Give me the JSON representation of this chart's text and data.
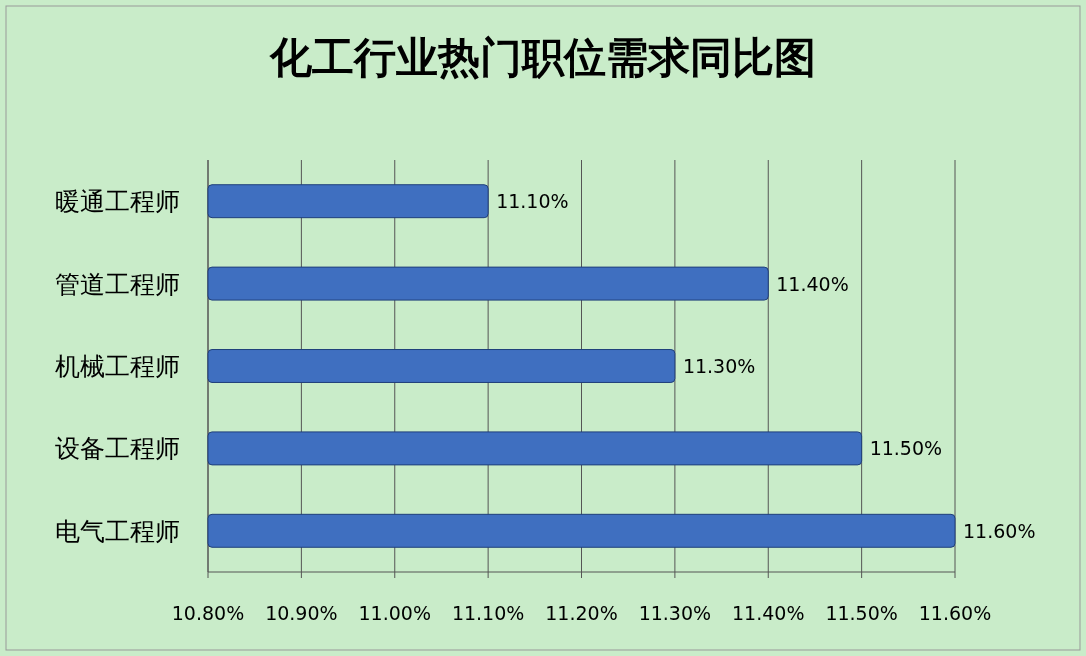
{
  "chart_data": {
    "type": "bar",
    "orientation": "horizontal",
    "title": "化工行业热门职位需求同比图",
    "categories": [
      "暖通工程师",
      "管道工程师",
      "机械工程师",
      "设备工程师",
      "电气工程师"
    ],
    "values": [
      11.1,
      11.4,
      11.3,
      11.5,
      11.6
    ],
    "value_labels": [
      "11.10%",
      "11.40%",
      "11.30%",
      "11.50%",
      "11.60%"
    ],
    "color": "#3f6fc0",
    "xlim": [
      10.8,
      11.6
    ],
    "xticks": [
      {
        "value": 10.8,
        "label": "10.80%"
      },
      {
        "value": 10.9,
        "label": "10.90%"
      },
      {
        "value": 11.0,
        "label": "11.00%"
      },
      {
        "value": 11.1,
        "label": "11.10%"
      },
      {
        "value": 11.2,
        "label": "11.20%"
      },
      {
        "value": 11.3,
        "label": "11.30%"
      },
      {
        "value": 11.4,
        "label": "11.40%"
      },
      {
        "value": 11.5,
        "label": "11.50%"
      },
      {
        "value": 11.6,
        "label": "11.60%"
      }
    ],
    "grid": "x"
  }
}
